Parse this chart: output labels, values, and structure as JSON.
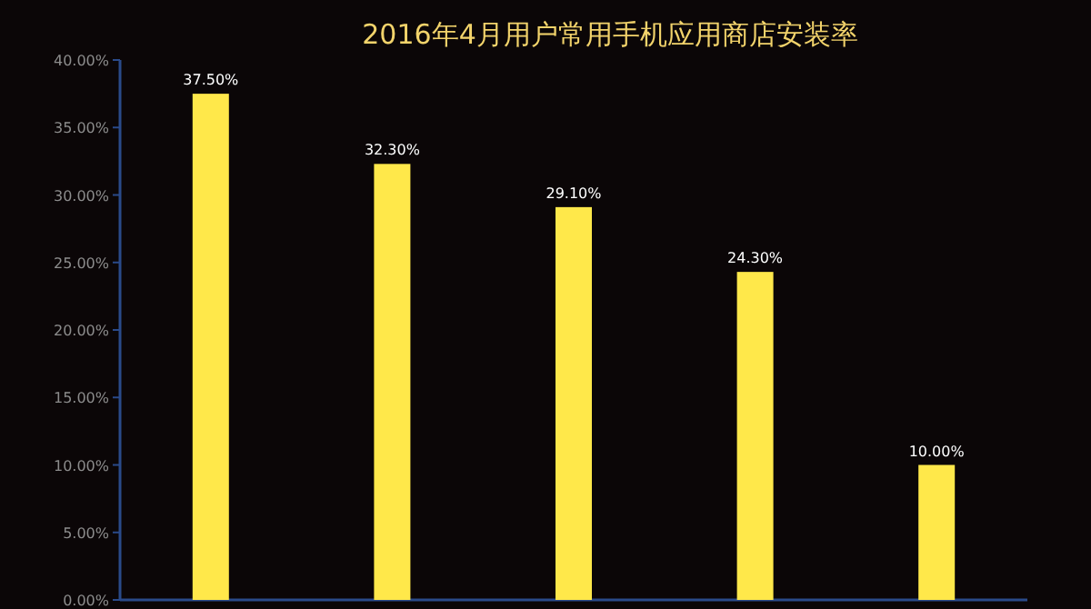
{
  "chart_data": {
    "type": "bar",
    "title": "2016年4月用户常用手机应用商店安装率",
    "categories": [
      null,
      null,
      null,
      null,
      null
    ],
    "values": [
      37.5,
      32.3,
      29.1,
      24.3,
      10.0
    ],
    "value_labels": [
      "37.50%",
      "32.30%",
      "29.10%",
      "24.30%",
      "10.00%"
    ],
    "color": "#ffe84a",
    "ylim": [
      0,
      40
    ],
    "yticks": [
      {
        "value": 0,
        "label": "0.00%"
      },
      {
        "value": 5,
        "label": "5.00%"
      },
      {
        "value": 10,
        "label": "10.00%"
      },
      {
        "value": 15,
        "label": "15.00%"
      },
      {
        "value": 20,
        "label": "20.00%"
      },
      {
        "value": 25,
        "label": "25.00%"
      },
      {
        "value": 30,
        "label": "30.00%"
      },
      {
        "value": 35,
        "label": "35.00%"
      },
      {
        "value": 40,
        "label": "40.00%"
      }
    ],
    "grid": false
  }
}
